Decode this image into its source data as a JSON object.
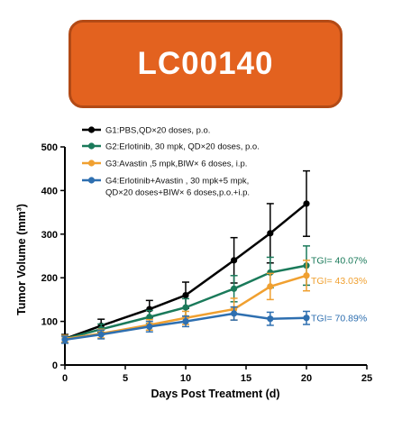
{
  "banner": {
    "text": "LC00140",
    "color": "#E3621F"
  },
  "chart_data": {
    "type": "line",
    "title": "",
    "xlabel": "Days Post Treatment (d)",
    "ylabel": "Tumor Volume (mm³)",
    "xlim": [
      0,
      25
    ],
    "ylim": [
      0,
      500
    ],
    "x_ticks": [
      "0",
      "5",
      "10",
      "15",
      "20",
      "25"
    ],
    "y_ticks": [
      "0",
      "100",
      "200",
      "300",
      "400",
      "500"
    ],
    "grid": false,
    "legend_position": "top",
    "series": [
      {
        "name": "G1:PBS,QD×20 doses, p.o.",
        "legend_lines": [
          "G1:PBS,QD×20 doses, p.o."
        ],
        "color": "#000000",
        "x": [
          0,
          3,
          7,
          10,
          14,
          17,
          20
        ],
        "y": [
          60,
          90,
          128,
          160,
          240,
          302,
          370
        ],
        "err": [
          10,
          15,
          20,
          30,
          52,
          68,
          75
        ],
        "annotation": ""
      },
      {
        "name": "G2:Erlotinib, 30 mpk, QD×20 doses, p.o.",
        "legend_lines": [
          "G2:Erlotinib, 30 mpk, QD×20 doses, p.o."
        ],
        "color": "#1A7A5A",
        "x": [
          0,
          3,
          7,
          10,
          14,
          17,
          20
        ],
        "y": [
          60,
          82,
          110,
          132,
          175,
          212,
          228
        ],
        "err": [
          8,
          12,
          15,
          20,
          30,
          35,
          45
        ],
        "annotation": "TGI= 40.07%"
      },
      {
        "name": "G3:Avastin ,5 mpk,BIW× 6 doses, i.p.",
        "legend_lines": [
          "G3:Avastin ,5 mpk,BIW× 6 doses, i.p."
        ],
        "color": "#F0A030",
        "x": [
          0,
          3,
          7,
          10,
          14,
          17,
          20
        ],
        "y": [
          60,
          72,
          92,
          108,
          128,
          180,
          205
        ],
        "err": [
          8,
          10,
          12,
          15,
          25,
          30,
          35
        ],
        "annotation": "TGI= 43.03%"
      },
      {
        "name": "G4:Erlotinib+Avastin , 30 mpk+5 mpk, QD×20 doses+BIW× 6 doses,p.o.+i.p.",
        "legend_lines": [
          "G4:Erlotinib+Avastin , 30 mpk+5 mpk,",
          "QD×20 doses+BIW× 6 doses,p.o.+i.p."
        ],
        "color": "#2E6FB0",
        "x": [
          0,
          3,
          7,
          10,
          14,
          17,
          20
        ],
        "y": [
          58,
          70,
          88,
          100,
          118,
          106,
          108
        ],
        "err": [
          8,
          10,
          12,
          12,
          15,
          15,
          15
        ],
        "annotation": "TGI= 70.89%"
      }
    ]
  }
}
